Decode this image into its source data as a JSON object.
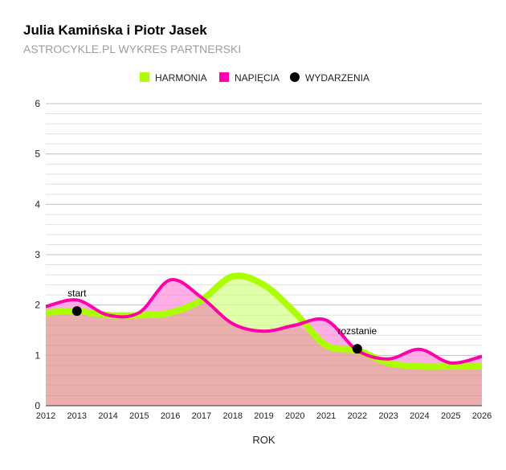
{
  "chart_data": {
    "type": "area",
    "title": "Julia Kamińska i Piotr Jasek",
    "subtitle": "ASTROCYKLE.PL WYKRES PARTNERSKI",
    "xlabel": "ROK",
    "ylabel": "",
    "x": [
      2012,
      2013,
      2014,
      2015,
      2016,
      2017,
      2018,
      2019,
      2020,
      2021,
      2022,
      2023,
      2024,
      2025,
      2026
    ],
    "xlim": [
      2012,
      2026
    ],
    "ylim": [
      0,
      6
    ],
    "yticks": [
      0,
      1,
      2,
      3,
      4,
      5,
      6
    ],
    "grid": true,
    "legend_position": "top",
    "series": [
      {
        "name": "HARMONIA",
        "color": "#aaff00",
        "fill": "#e1ffa9",
        "values": [
          1.85,
          1.88,
          1.8,
          1.8,
          1.85,
          2.1,
          2.57,
          2.4,
          1.85,
          1.2,
          1.1,
          0.85,
          0.78,
          0.78,
          0.78
        ]
      },
      {
        "name": "NAPIĘCIA",
        "color": "#ff00aa",
        "fill": "#fdaee5",
        "values": [
          1.97,
          2.1,
          1.8,
          1.85,
          2.5,
          2.15,
          1.63,
          1.48,
          1.6,
          1.7,
          1.1,
          0.93,
          1.12,
          0.85,
          0.98
        ]
      }
    ],
    "overlap_fill": "#eaafac",
    "events": {
      "name": "WYDARZENIA",
      "color": "#000000",
      "points": [
        {
          "x": 2013,
          "y": 1.88,
          "label": "start"
        },
        {
          "x": 2022,
          "y": 1.13,
          "label": "rozstanie"
        }
      ]
    }
  }
}
